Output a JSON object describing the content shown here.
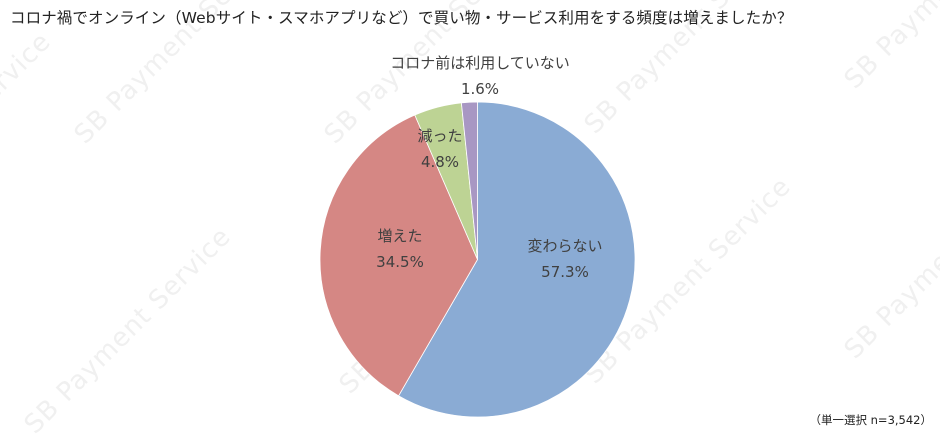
{
  "title": "コロナ禍でオンライン（Webサイト・スマホアプリなど）で買い物・サービス利用をする頻度は増えましたか？",
  "note": "（単一選択 n=3,542）",
  "watermark_text": "SB Payment Service",
  "chart_data": {
    "type": "pie",
    "title": "コロナ禍でオンライン（Webサイト・スマホアプリなど）で買い物・サービス利用をする頻度は増えましたか？",
    "start_angle": "12 o'clock",
    "direction": "clockwise",
    "categories": [
      "変わらない",
      "増えた",
      "減った",
      "コロナ前は利用していない"
    ],
    "values": [
      57.3,
      34.5,
      4.8,
      1.6
    ],
    "value_labels": [
      "57.3%",
      "34.5%",
      "4.8%",
      "1.6%"
    ],
    "colors": [
      "#8aabd4",
      "#d58784",
      "#bdd394",
      "#a897c3"
    ],
    "n": 3542,
    "legend": "none (data labels on slices)"
  },
  "labels": [
    {
      "name": "変わらない",
      "value": "57.3%"
    },
    {
      "name": "増えた",
      "value": "34.5%"
    },
    {
      "name": "減った",
      "value": "4.8%"
    },
    {
      "name": "コロナ前は利用していない",
      "value": "1.6%"
    }
  ]
}
